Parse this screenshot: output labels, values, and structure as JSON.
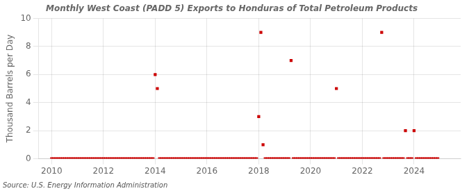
{
  "chart_data": {
    "type": "scatter",
    "title": "Monthly West Coast (PADD 5) Exports to Honduras of Total Petroleum Products",
    "y_label": "Thousand Barrels per Day",
    "annotations": [
      "Source: U.S. Energy Information Administration"
    ],
    "color": "#cc0000",
    "marker": "square",
    "grid": true,
    "xlim": [
      2009.5,
      2025.8
    ],
    "xticks": [
      2010,
      2012,
      2014,
      2016,
      2018,
      2020,
      2022,
      2024
    ],
    "ylim": [
      0,
      10
    ],
    "yticks": [
      0,
      2,
      4,
      6,
      8,
      10
    ],
    "x": [
      2010.0,
      2010.083,
      2010.167,
      2010.25,
      2010.333,
      2010.417,
      2010.5,
      2010.583,
      2010.667,
      2010.75,
      2010.833,
      2010.917,
      2011.0,
      2011.083,
      2011.167,
      2011.25,
      2011.333,
      2011.417,
      2011.5,
      2011.583,
      2011.667,
      2011.75,
      2011.833,
      2011.917,
      2012.0,
      2012.083,
      2012.167,
      2012.25,
      2012.333,
      2012.417,
      2012.5,
      2012.583,
      2012.667,
      2012.75,
      2012.833,
      2012.917,
      2013.0,
      2013.083,
      2013.167,
      2013.25,
      2013.333,
      2013.417,
      2013.5,
      2013.583,
      2013.667,
      2013.75,
      2013.833,
      2013.917,
      2014.0,
      2014.083,
      2014.167,
      2014.25,
      2014.333,
      2014.417,
      2014.5,
      2014.583,
      2014.667,
      2014.75,
      2014.833,
      2014.917,
      2015.0,
      2015.083,
      2015.167,
      2015.25,
      2015.333,
      2015.417,
      2015.5,
      2015.583,
      2015.667,
      2015.75,
      2015.833,
      2015.917,
      2016.0,
      2016.083,
      2016.167,
      2016.25,
      2016.333,
      2016.417,
      2016.5,
      2016.583,
      2016.667,
      2016.75,
      2016.833,
      2016.917,
      2017.0,
      2017.083,
      2017.167,
      2017.25,
      2017.333,
      2017.417,
      2017.5,
      2017.583,
      2017.667,
      2017.75,
      2017.833,
      2017.917,
      2018.0,
      2018.083,
      2018.167,
      2018.25,
      2018.333,
      2018.417,
      2018.5,
      2018.583,
      2018.667,
      2018.75,
      2018.833,
      2018.917,
      2019.0,
      2019.083,
      2019.167,
      2019.25,
      2019.333,
      2019.417,
      2019.5,
      2019.583,
      2019.667,
      2019.75,
      2019.833,
      2019.917,
      2020.0,
      2020.083,
      2020.167,
      2020.25,
      2020.333,
      2020.417,
      2020.5,
      2020.583,
      2020.667,
      2020.75,
      2020.833,
      2020.917,
      2021.0,
      2021.083,
      2021.167,
      2021.25,
      2021.333,
      2021.417,
      2021.5,
      2021.583,
      2021.667,
      2021.75,
      2021.833,
      2021.917,
      2022.0,
      2022.083,
      2022.167,
      2022.25,
      2022.333,
      2022.417,
      2022.5,
      2022.583,
      2022.667,
      2022.75,
      2022.833,
      2022.917,
      2023.0,
      2023.083,
      2023.167,
      2023.25,
      2023.333,
      2023.417,
      2023.5,
      2023.583,
      2023.667,
      2023.75,
      2023.833,
      2023.917,
      2024.0,
      2024.083,
      2024.167,
      2024.25,
      2024.333,
      2024.417,
      2024.5,
      2024.583,
      2024.667,
      2024.75,
      2024.833,
      2024.917
    ],
    "values": [
      0,
      0,
      0,
      0,
      0,
      0,
      0,
      0,
      0,
      0,
      0,
      0,
      0,
      0,
      0,
      0,
      0,
      0,
      0,
      0,
      0,
      0,
      0,
      0,
      0,
      0,
      0,
      0,
      0,
      0,
      0,
      0,
      0,
      0,
      0,
      0,
      0,
      0,
      0,
      0,
      0,
      0,
      0,
      0,
      0,
      0,
      0,
      0,
      6,
      5,
      0,
      0,
      0,
      0,
      0,
      0,
      0,
      0,
      0,
      0,
      0,
      0,
      0,
      0,
      0,
      0,
      0,
      0,
      0,
      0,
      0,
      0,
      0,
      0,
      0,
      0,
      0,
      0,
      0,
      0,
      0,
      0,
      0,
      0,
      0,
      0,
      0,
      0,
      0,
      0,
      0,
      0,
      0,
      0,
      0,
      0,
      3,
      9,
      1,
      0,
      0,
      0,
      0,
      0,
      0,
      0,
      0,
      0,
      0,
      0,
      0,
      7,
      0,
      0,
      0,
      0,
      0,
      0,
      0,
      0,
      0,
      0,
      0,
      0,
      0,
      0,
      0,
      0,
      0,
      0,
      0,
      0,
      5,
      0,
      0,
      0,
      0,
      0,
      0,
      0,
      0,
      0,
      0,
      0,
      0,
      0,
      0,
      0,
      0,
      0,
      0,
      0,
      0,
      9,
      0,
      0,
      0,
      0,
      0,
      0,
      0,
      0,
      0,
      0,
      2,
      0,
      0,
      0,
      2,
      0,
      0,
      0,
      0,
      0,
      0,
      0,
      0,
      0,
      0,
      0
    ]
  }
}
